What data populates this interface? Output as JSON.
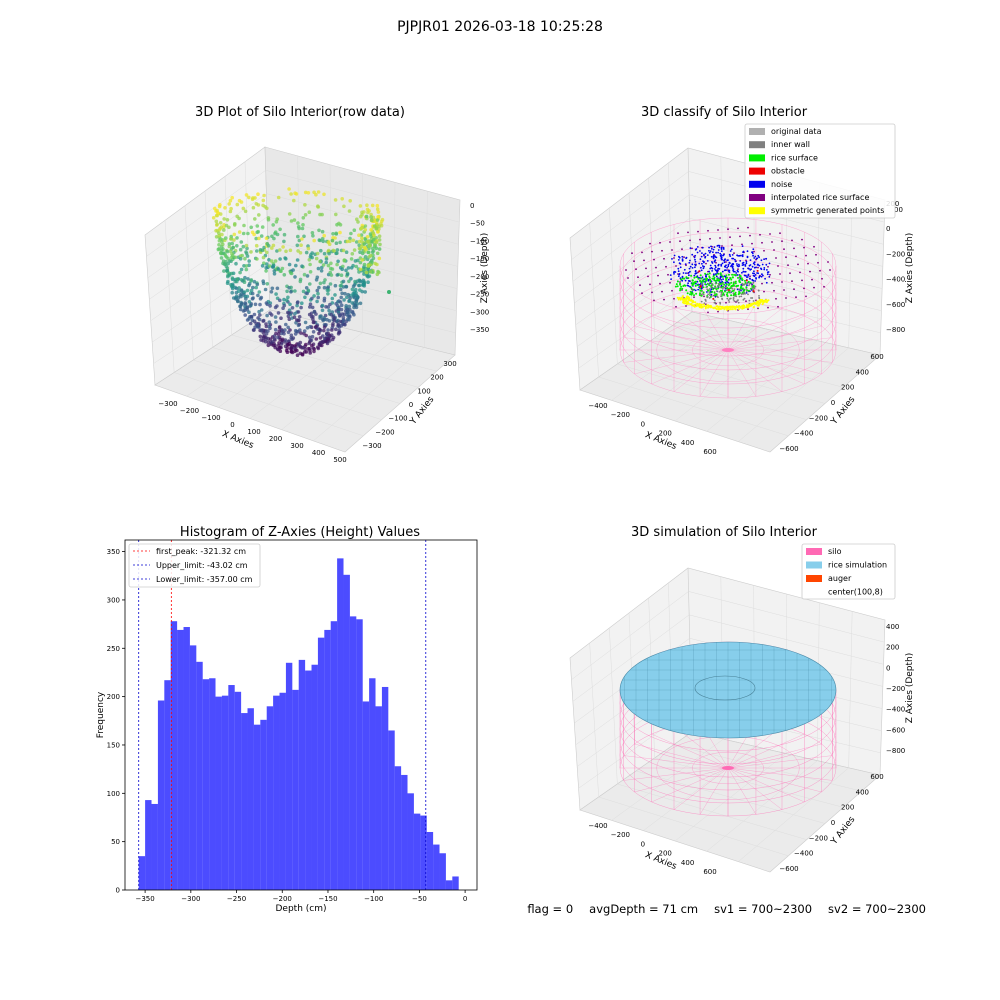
{
  "suptitle": "PJPJR01 2026-03-18 10:25:28",
  "panels": {
    "raw": {
      "title": "3D Plot of Silo Interior(row data)",
      "xlabel": "X Axies",
      "ylabel": "Y Axies",
      "zlabel": "Z Axies (Depth)",
      "xticks": [
        "−300",
        "−200",
        "−100",
        "0",
        "100",
        "200",
        "300",
        "400",
        "500"
      ],
      "yticks": [
        "300",
        "200",
        "100",
        "0",
        "−100",
        "−200",
        "−300"
      ],
      "zticks": [
        "0",
        "−50",
        "−100",
        "−150",
        "−200",
        "−250",
        "−300",
        "−350"
      ]
    },
    "classify": {
      "title": "3D classify of Silo Interior",
      "xlabel": "X Axies",
      "ylabel": "Y Axies",
      "zlabel": "Z Axies (Depth)",
      "xticks": [
        "−400",
        "−200",
        "0",
        "200",
        "400",
        "600"
      ],
      "yticks": [
        "600",
        "400",
        "200",
        "0",
        "−200",
        "−400",
        "−600"
      ],
      "zticks": [
        "200",
        "0",
        "−200",
        "−400",
        "−600",
        "−800"
      ],
      "legend": [
        {
          "label": "original data",
          "color": "#b0b0b0"
        },
        {
          "label": "inner wall",
          "color": "#808080"
        },
        {
          "label": "rice surface",
          "color": "#00ee00"
        },
        {
          "label": "obstacle",
          "color": "#ee0000"
        },
        {
          "label": "noise",
          "color": "#0000ee"
        },
        {
          "label": "interpolated rice surface",
          "color": "#800080"
        },
        {
          "label": "symmetric generated points",
          "color": "#ffff00"
        }
      ],
      "ztick_partial": "00"
    },
    "sim": {
      "title": "3D simulation of Silo Interior",
      "xlabel": "X Axies",
      "ylabel": "Y Axies",
      "zlabel": "Z Axies (Depth)",
      "xticks": [
        "−400",
        "−200",
        "0",
        "200",
        "400",
        "600"
      ],
      "yticks": [
        "600",
        "400",
        "200",
        "0",
        "−200",
        "−400",
        "−600"
      ],
      "zticks": [
        "400",
        "200",
        "0",
        "−200",
        "−400",
        "−600",
        "−800"
      ],
      "legend": [
        {
          "label": "silo",
          "color": "#ff69b4"
        },
        {
          "label": "rice simulation",
          "color": "#87ceeb"
        },
        {
          "label": "auger",
          "color": "#ff4500"
        },
        {
          "label": "center(100,8)",
          "color": ""
        }
      ]
    }
  },
  "chart_data": {
    "type": "bar",
    "title": "Histogram of Z-Axies (Height) Values",
    "xlabel": "Depth (cm)",
    "ylabel": "Frequency",
    "xlim": [
      -372,
      13
    ],
    "ylim": [
      0,
      362
    ],
    "xticks": [
      -350,
      -300,
      -250,
      -200,
      -150,
      -100,
      -50,
      0
    ],
    "xtick_labels": [
      "−350",
      "−300",
      "−250",
      "−200",
      "−150",
      "−100",
      "−50",
      "0"
    ],
    "yticks": [
      0,
      50,
      100,
      150,
      200,
      250,
      300,
      350
    ],
    "bin_start": -357,
    "bin_width": 7,
    "values": [
      35,
      93,
      89,
      196,
      217,
      278,
      269,
      272,
      253,
      236,
      218,
      219,
      200,
      201,
      212,
      205,
      183,
      188,
      171,
      176,
      190,
      201,
      204,
      235,
      207,
      238,
      227,
      233,
      261,
      269,
      278,
      343,
      326,
      283,
      280,
      195,
      219,
      190,
      210,
      165,
      128,
      119,
      100,
      79,
      77,
      60,
      47,
      38,
      10,
      14
    ],
    "bar_color": "#0000ff",
    "vlines": [
      {
        "x": -321.32,
        "label": "first_peak: -321.32 cm",
        "color": "#ff0000"
      },
      {
        "x": -43.02,
        "label": "Upper_limit: -43.02 cm",
        "color": "#0000cc"
      },
      {
        "x": -357.0,
        "label": "Lower_limit: -357.00 cm",
        "color": "#0000cc"
      }
    ]
  },
  "status": {
    "flag": "flag = 0",
    "avg": "avgDepth = 71 cm",
    "sv1": "sv1 = 700~2300",
    "sv2": "sv2 = 700~2300"
  }
}
